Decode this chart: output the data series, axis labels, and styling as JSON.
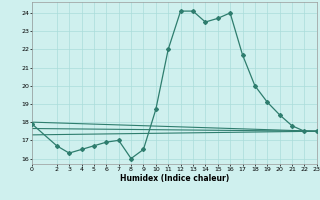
{
  "title": "",
  "xlabel": "Humidex (Indice chaleur)",
  "ylabel": "",
  "background_color": "#cff0ee",
  "grid_color": "#aaddda",
  "line_color": "#2e7d6e",
  "xlim": [
    0,
    23
  ],
  "ylim": [
    15.7,
    24.6
  ],
  "yticks": [
    16,
    17,
    18,
    19,
    20,
    21,
    22,
    23,
    24
  ],
  "xticks": [
    0,
    2,
    3,
    4,
    5,
    6,
    7,
    8,
    9,
    10,
    11,
    12,
    13,
    14,
    15,
    16,
    17,
    18,
    19,
    20,
    21,
    22,
    23
  ],
  "series1_x": [
    0,
    2,
    3,
    4,
    5,
    6,
    7,
    8,
    9,
    10,
    11,
    12,
    13,
    14,
    15,
    16,
    17,
    18,
    19,
    20,
    21,
    22,
    23
  ],
  "series1_y": [
    17.9,
    16.7,
    16.3,
    16.5,
    16.7,
    16.9,
    17.0,
    16.0,
    16.5,
    18.7,
    22.0,
    24.1,
    24.1,
    23.5,
    23.7,
    24.0,
    21.7,
    20.0,
    19.1,
    18.4,
    17.8,
    17.5,
    17.5
  ],
  "series2_x": [
    0,
    23
  ],
  "series2_y": [
    18.0,
    17.5
  ],
  "series3_x": [
    0,
    23
  ],
  "series3_y": [
    17.65,
    17.5
  ],
  "series4_x": [
    0,
    23
  ],
  "series4_y": [
    17.3,
    17.5
  ]
}
